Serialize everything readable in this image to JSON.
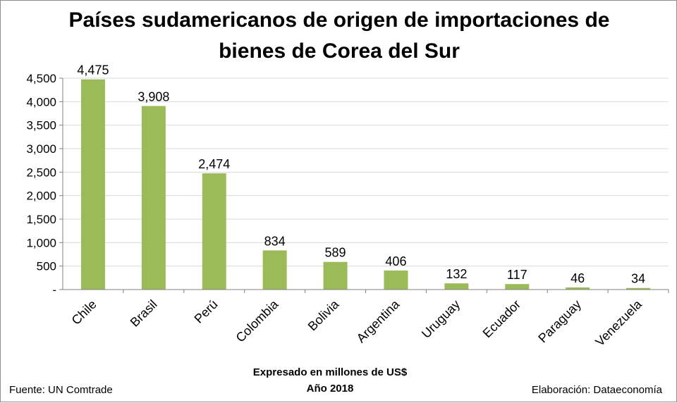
{
  "chart_data": {
    "type": "bar",
    "title_lines": [
      "Países sudamericanos de origen de importaciones de",
      "bienes de Corea del Sur"
    ],
    "categories": [
      "Chile",
      "Brasil",
      "Perú",
      "Colombia",
      "Bolivia",
      "Argentina",
      "Uruguay",
      "Ecuador",
      "Paraguay",
      "Venezuela"
    ],
    "values": [
      4475,
      3908,
      2474,
      834,
      589,
      406,
      132,
      117,
      46,
      34
    ],
    "value_labels": [
      "4,475",
      "3,908",
      "2,474",
      "834",
      "589",
      "406",
      "132",
      "117",
      "46",
      "34"
    ],
    "ylim": [
      0,
      4500
    ],
    "yticks": [
      0,
      500,
      1000,
      1500,
      2000,
      2500,
      3000,
      3500,
      4000,
      4500
    ],
    "ytick_labels": [
      "-",
      "500",
      "1,000",
      "1,500",
      "2,000",
      "2,500",
      "3,000",
      "3,500",
      "4,000",
      "4,500"
    ],
    "xlabel_lines": [
      "Expresado en millones de US$",
      "Año 2018"
    ],
    "ylabel": "",
    "grid": true,
    "bar_color": "#9bbb59"
  },
  "footer": {
    "source": "Fuente: UN Comtrade",
    "credit": "Elaboración: Dataeconomía"
  }
}
